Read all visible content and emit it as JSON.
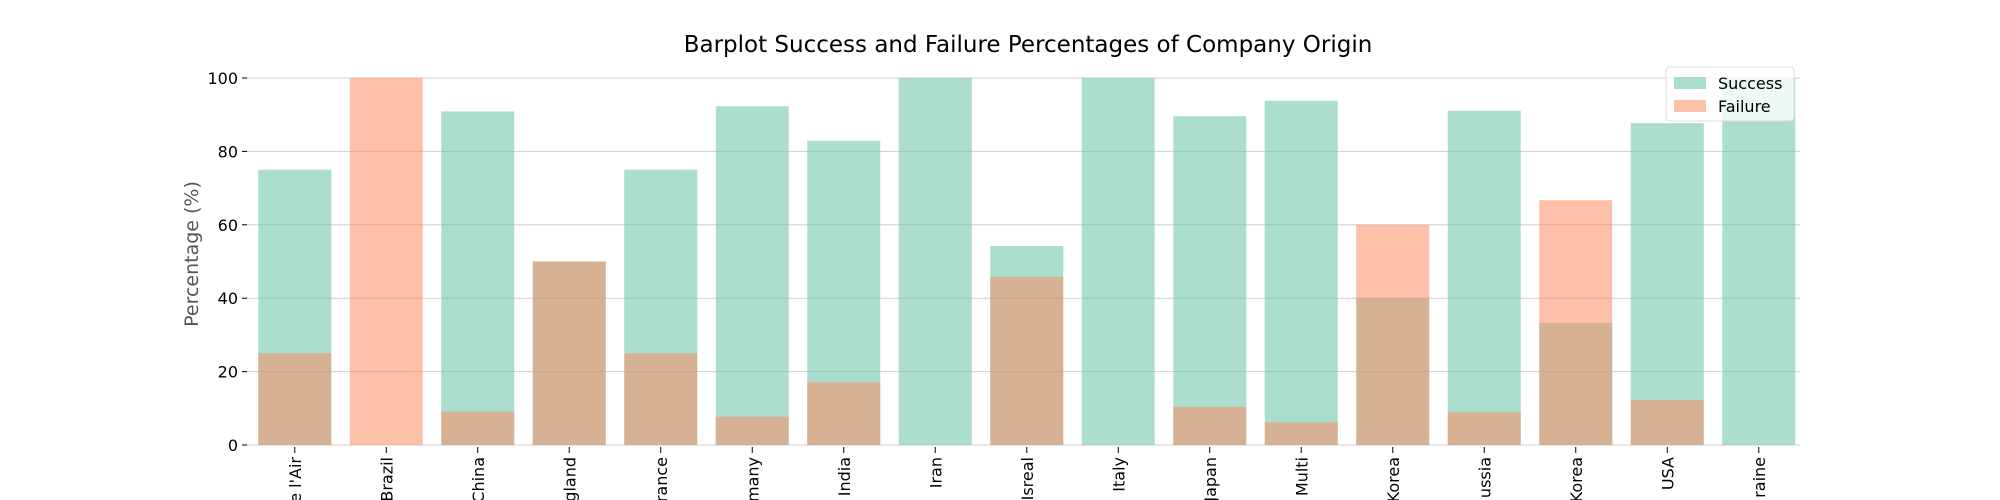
{
  "chart_data": {
    "type": "bar",
    "title": "Barplot Success and Failure Percentages of Company Origin",
    "xlabel": "",
    "ylabel": "Percentage (%)",
    "ylim": [
      0,
      100
    ],
    "yticks": [
      0,
      20,
      40,
      60,
      80,
      100
    ],
    "grid": "horizontal",
    "legend_position": "top-right",
    "categories": [
      "Armée de l'Air",
      "Brazil",
      "China",
      "England",
      "France",
      "Germany",
      "India",
      "Iran",
      "Isreal",
      "Italy",
      "Japan",
      "Multi",
      "North Korea",
      "Russia",
      "South Korea",
      "USA",
      "Ukraine"
    ],
    "tick_labels_visible": [
      "e l'Air",
      "Brazil",
      "China",
      "gland",
      "rance",
      "many",
      "India",
      "Iran",
      "Isreal",
      "Italy",
      "Japan",
      "Multi",
      "Korea",
      "ussia",
      "Korea",
      "USA",
      "raine"
    ],
    "series": [
      {
        "name": "Success",
        "color": "#66c2a5",
        "values": [
          75,
          0,
          90.9,
          50,
          75,
          92.3,
          82.9,
          100,
          54.2,
          100,
          89.6,
          93.8,
          40,
          91.1,
          33.3,
          87.7,
          100
        ]
      },
      {
        "name": "Failure",
        "color": "#fc8d62",
        "values": [
          25,
          100,
          9.1,
          50,
          25,
          7.7,
          17.1,
          0,
          45.8,
          0,
          10.4,
          6.2,
          60,
          8.9,
          66.7,
          12.3,
          0
        ]
      }
    ]
  }
}
